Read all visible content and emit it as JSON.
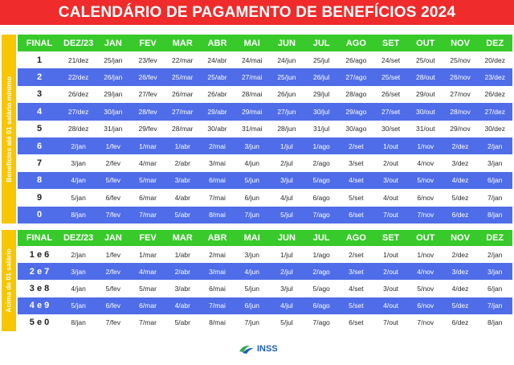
{
  "title": "CALENDÁRIO DE PAGAMENTO DE BENEFÍCIOS 2024",
  "logo_text": "INSS",
  "sections": [
    {
      "side_label": "Benefícios até 01 salário mínimo",
      "header": [
        "FINAL",
        "DEZ/23",
        "JAN",
        "FEV",
        "MAR",
        "ABR",
        "MAI",
        "JUN",
        "JUL",
        "AGO",
        "SET",
        "OUT",
        "NOV",
        "DEZ"
      ],
      "rows": [
        [
          "1",
          "21/dez",
          "25/jan",
          "23/fev",
          "22/mar",
          "24/abr",
          "24/mai",
          "24/jun",
          "25/jul",
          "26/ago",
          "24/set",
          "25/out",
          "25/nov",
          "20/dez"
        ],
        [
          "2",
          "22/dez",
          "26/jan",
          "26/fev",
          "25/mar",
          "25/abr",
          "27/mai",
          "25/jun",
          "26/jul",
          "27/ago",
          "25/set",
          "28/out",
          "26/nov",
          "23/dez"
        ],
        [
          "3",
          "26/dez",
          "29/jan",
          "27/fev",
          "26/mar",
          "26/abr",
          "28/mai",
          "26/jun",
          "29/jul",
          "28/ago",
          "26/set",
          "29/out",
          "27/nov",
          "26/dez"
        ],
        [
          "4",
          "27/dez",
          "30/jan",
          "28/fev",
          "27/mar",
          "29/abr",
          "29/mai",
          "27/jun",
          "30/jul",
          "29/ago",
          "27/set",
          "30/out",
          "28/nov",
          "27/dez"
        ],
        [
          "5",
          "28/dez",
          "31/jan",
          "29/fev",
          "28/mar",
          "30/abr",
          "31/mai",
          "28/jun",
          "31/jul",
          "30/ago",
          "30/set",
          "31/out",
          "29/nov",
          "30/dez"
        ],
        [
          "6",
          "2/jan",
          "1/fev",
          "1/mar",
          "1/abr",
          "2/mai",
          "3/jun",
          "1/jul",
          "1/ago",
          "2/set",
          "1/out",
          "1/nov",
          "2/dez",
          "2/jan"
        ],
        [
          "7",
          "3/jan",
          "2/fev",
          "4/mar",
          "2/abr",
          "3/mai",
          "4/jun",
          "2/jul",
          "2/ago",
          "3/set",
          "2/out",
          "4/nov",
          "3/dez",
          "3/jan"
        ],
        [
          "8",
          "4/jan",
          "5/fev",
          "5/mar",
          "3/abr",
          "6/mai",
          "5/jun",
          "3/jul",
          "5/ago",
          "4/set",
          "3/out",
          "5/nov",
          "4/dez",
          "6/jan"
        ],
        [
          "9",
          "5/jan",
          "6/fev",
          "6/mar",
          "4/abr",
          "7/mai",
          "6/jun",
          "4/jul",
          "6/ago",
          "5/set",
          "4/out",
          "6/nov",
          "5/dez",
          "7/jan"
        ],
        [
          "0",
          "8/jan",
          "7/fev",
          "7/mar",
          "5/abr",
          "8/mai",
          "7/jun",
          "5/jul",
          "7/ago",
          "6/set",
          "7/out",
          "7/nov",
          "6/dez",
          "8/jan"
        ]
      ]
    },
    {
      "side_label": "Acima de 01 salário",
      "header": [
        "FINAL",
        "DEZ/23",
        "JAN",
        "FEV",
        "MAR",
        "ABR",
        "MAI",
        "JUN",
        "JUL",
        "AGO",
        "SET",
        "OUT",
        "NOV",
        "DEZ"
      ],
      "rows": [
        [
          "1 e 6",
          "2/jan",
          "1/fev",
          "1/mar",
          "1/abr",
          "2/mai",
          "3/jun",
          "1/jul",
          "1/ago",
          "2/set",
          "1/out",
          "1/nov",
          "2/dez",
          "2/jan"
        ],
        [
          "2 e 7",
          "3/jan",
          "2/fev",
          "4/mar",
          "2/abr",
          "3/mai",
          "4/jun",
          "2/jul",
          "2/ago",
          "3/set",
          "2/out",
          "4/nov",
          "3/dez",
          "3/jan"
        ],
        [
          "3 e 8",
          "4/jan",
          "5/fev",
          "5/mar",
          "3/abr",
          "6/mai",
          "5/jun",
          "3/jul",
          "5/ago",
          "4/set",
          "3/out",
          "5/nov",
          "4/dez",
          "6/jan"
        ],
        [
          "4 e 9",
          "5/jan",
          "6/fev",
          "6/mar",
          "4/abr",
          "7/mai",
          "6/jun",
          "4/jul",
          "6/ago",
          "5/set",
          "4/out",
          "6/nov",
          "5/dez",
          "7/jan"
        ],
        [
          "5 e 0",
          "8/jan",
          "7/fev",
          "7/mar",
          "5/abr",
          "8/mai",
          "7/jun",
          "5/jul",
          "7/ago",
          "6/set",
          "7/out",
          "7/nov",
          "6/dez",
          "8/jan"
        ]
      ]
    }
  ],
  "colors": {
    "title_bg": "#ef2b2b",
    "header_bg": "#38c92a",
    "side_bg": "#f7c600",
    "row_blue": "#4f6de8",
    "row_white": "#ffffff",
    "logo_blue": "#1b5fb8",
    "logo_green": "#2fa84f"
  }
}
